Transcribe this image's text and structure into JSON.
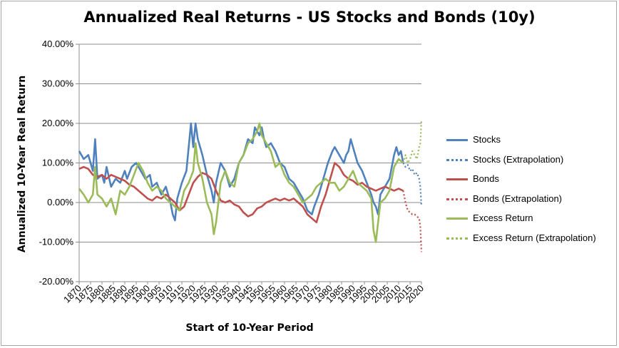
{
  "chart_data": {
    "type": "line",
    "title": "Annualized Real Returns - US Stocks and Bonds (10y)",
    "xlabel": "Start of 10-Year Period",
    "ylabel": "Annualized 10-Year Real Return",
    "x_range": [
      1870,
      2020
    ],
    "ylim": [
      -0.2,
      0.4
    ],
    "x_ticks": [
      "1870",
      "1875",
      "1880",
      "1885",
      "1890",
      "1895",
      "1900",
      "1905",
      "1910",
      "1915",
      "1920",
      "1925",
      "1930",
      "1935",
      "1940",
      "1945",
      "1950",
      "1955",
      "1960",
      "1965",
      "1970",
      "1975",
      "1980",
      "1985",
      "1990",
      "1995",
      "2000",
      "2005",
      "2010",
      "2015",
      "2020"
    ],
    "y_ticks": [
      "-20.00%",
      "-10.00%",
      "0.00%",
      "10.00%",
      "20.00%",
      "30.00%",
      "40.00%"
    ],
    "grid": "horizontal major gridlines",
    "legend_position": "right",
    "series": [
      {
        "name": "Stocks",
        "color": "#4f81bd",
        "style": "solid",
        "x": [
          1870,
          1872,
          1874,
          1876,
          1877,
          1878,
          1880,
          1881,
          1882,
          1884,
          1886,
          1888,
          1890,
          1891,
          1893,
          1895,
          1897,
          1899,
          1901,
          1902,
          1904,
          1906,
          1908,
          1910,
          1911,
          1912,
          1913,
          1915,
          1917,
          1919,
          1920,
          1921,
          1922,
          1924,
          1926,
          1928,
          1929,
          1930,
          1932,
          1934,
          1936,
          1938,
          1940,
          1942,
          1944,
          1946,
          1947,
          1949,
          1950,
          1951,
          1952,
          1954,
          1956,
          1958,
          1960,
          1962,
          1964,
          1966,
          1968,
          1970,
          1972,
          1973,
          1975,
          1977,
          1979,
          1981,
          1982,
          1984,
          1986,
          1987,
          1988,
          1989,
          1990,
          1992,
          1994,
          1996,
          1998,
          1999,
          2000,
          2001,
          2002,
          2004,
          2006,
          2008,
          2009,
          2010,
          2011,
          2012
        ],
        "y": [
          0.13,
          0.11,
          0.12,
          0.08,
          0.16,
          0.06,
          0.07,
          0.05,
          0.09,
          0.04,
          0.06,
          0.05,
          0.08,
          0.06,
          0.09,
          0.1,
          0.08,
          0.06,
          0.07,
          0.04,
          0.05,
          0.02,
          0.04,
          0.0,
          -0.03,
          -0.045,
          0.01,
          0.05,
          0.08,
          0.2,
          0.14,
          0.2,
          0.16,
          0.12,
          0.07,
          0.03,
          0.0,
          0.05,
          0.1,
          0.08,
          0.04,
          0.06,
          0.1,
          0.12,
          0.16,
          0.15,
          0.19,
          0.17,
          0.19,
          0.16,
          0.14,
          0.15,
          0.13,
          0.1,
          0.09,
          0.06,
          0.05,
          0.03,
          0.01,
          -0.02,
          -0.03,
          -0.01,
          0.02,
          0.06,
          0.1,
          0.13,
          0.14,
          0.12,
          0.1,
          0.12,
          0.13,
          0.16,
          0.14,
          0.1,
          0.08,
          0.05,
          0.02,
          0.0,
          -0.01,
          -0.03,
          0.02,
          0.04,
          0.06,
          0.12,
          0.14,
          0.12,
          0.13,
          0.1
        ]
      },
      {
        "name": "Stocks (Extrapolation)",
        "color": "#4f81bd",
        "style": "dotted",
        "x": [
          2012,
          2013,
          2014,
          2015,
          2016,
          2017,
          2018,
          2019,
          2019.5,
          2020
        ],
        "y": [
          0.1,
          0.09,
          0.095,
          0.08,
          0.085,
          0.07,
          0.075,
          0.06,
          0.04,
          -0.01
        ]
      },
      {
        "name": "Bonds",
        "color": "#c0504d",
        "style": "solid",
        "x": [
          1870,
          1872,
          1874,
          1876,
          1878,
          1880,
          1882,
          1884,
          1886,
          1888,
          1890,
          1892,
          1894,
          1896,
          1898,
          1900,
          1902,
          1904,
          1906,
          1908,
          1910,
          1912,
          1914,
          1916,
          1918,
          1920,
          1922,
          1924,
          1926,
          1928,
          1930,
          1932,
          1934,
          1936,
          1938,
          1940,
          1942,
          1944,
          1946,
          1948,
          1950,
          1952,
          1954,
          1956,
          1958,
          1960,
          1962,
          1964,
          1966,
          1968,
          1970,
          1972,
          1974,
          1976,
          1978,
          1980,
          1982,
          1984,
          1986,
          1988,
          1990,
          1992,
          1994,
          1996,
          1998,
          2000,
          2002,
          2004,
          2006,
          2008,
          2010,
          2012
        ],
        "y": [
          0.085,
          0.09,
          0.085,
          0.07,
          0.065,
          0.07,
          0.06,
          0.07,
          0.065,
          0.06,
          0.055,
          0.045,
          0.04,
          0.03,
          0.02,
          0.01,
          0.005,
          0.015,
          0.01,
          0.02,
          0.01,
          0.0,
          -0.02,
          -0.01,
          0.02,
          0.05,
          0.065,
          0.075,
          0.07,
          0.06,
          0.03,
          0.005,
          0.0,
          0.005,
          -0.005,
          -0.01,
          -0.025,
          -0.035,
          -0.03,
          -0.015,
          -0.01,
          0.0,
          0.005,
          0.01,
          0.005,
          0.01,
          0.005,
          0.01,
          0.0,
          -0.01,
          -0.03,
          -0.04,
          -0.05,
          -0.01,
          0.02,
          0.06,
          0.1,
          0.09,
          0.07,
          0.06,
          0.055,
          0.045,
          0.05,
          0.04,
          0.035,
          0.03,
          0.035,
          0.04,
          0.035,
          0.03,
          0.035,
          0.03
        ]
      },
      {
        "name": "Bonds (Extrapolation)",
        "color": "#c0504d",
        "style": "dotted",
        "x": [
          2012,
          2013,
          2014,
          2015,
          2016,
          2017,
          2018,
          2019,
          2019.5,
          2020
        ],
        "y": [
          0.03,
          0.0,
          -0.02,
          -0.025,
          -0.03,
          -0.03,
          -0.035,
          -0.04,
          -0.06,
          -0.125
        ]
      },
      {
        "name": "Excess Return",
        "color": "#9bbb59",
        "style": "solid",
        "x": [
          1870,
          1872,
          1874,
          1876,
          1877,
          1878,
          1880,
          1882,
          1884,
          1886,
          1888,
          1890,
          1892,
          1894,
          1896,
          1898,
          1900,
          1902,
          1904,
          1906,
          1908,
          1910,
          1912,
          1914,
          1916,
          1918,
          1920,
          1921,
          1922,
          1924,
          1926,
          1928,
          1929,
          1930,
          1932,
          1934,
          1936,
          1938,
          1940,
          1942,
          1944,
          1946,
          1948,
          1949,
          1950,
          1952,
          1954,
          1956,
          1958,
          1960,
          1962,
          1964,
          1966,
          1968,
          1970,
          1972,
          1974,
          1976,
          1978,
          1980,
          1982,
          1984,
          1986,
          1988,
          1990,
          1992,
          1994,
          1996,
          1998,
          1999,
          2000,
          2001,
          2002,
          2004,
          2006,
          2008,
          2010,
          2012
        ],
        "y": [
          0.035,
          0.02,
          0.0,
          0.02,
          0.09,
          0.02,
          0.01,
          -0.01,
          0.01,
          -0.03,
          0.03,
          0.02,
          0.04,
          0.07,
          0.1,
          0.08,
          0.05,
          0.03,
          0.04,
          0.03,
          0.01,
          0.0,
          -0.01,
          -0.02,
          0.03,
          0.05,
          0.08,
          0.15,
          0.1,
          0.06,
          0.0,
          -0.03,
          -0.08,
          -0.05,
          0.05,
          0.08,
          0.05,
          0.04,
          0.1,
          0.12,
          0.15,
          0.16,
          0.18,
          0.2,
          0.17,
          0.15,
          0.13,
          0.09,
          0.1,
          0.07,
          0.05,
          0.04,
          0.02,
          0.0,
          0.01,
          0.02,
          0.04,
          0.05,
          0.06,
          0.05,
          0.05,
          0.03,
          0.04,
          0.06,
          0.08,
          0.05,
          0.04,
          0.03,
          0.01,
          -0.07,
          -0.1,
          -0.05,
          0.0,
          0.01,
          0.03,
          0.09,
          0.11,
          0.1
        ]
      },
      {
        "name": "Excess Return (Extrapolation)",
        "color": "#9bbb59",
        "style": "dotted",
        "x": [
          2012,
          2013,
          2014,
          2015,
          2016,
          2017,
          2018,
          2019,
          2019.5,
          2020
        ],
        "y": [
          0.1,
          0.12,
          0.1,
          0.11,
          0.13,
          0.12,
          0.11,
          0.14,
          0.15,
          0.21
        ]
      }
    ]
  }
}
